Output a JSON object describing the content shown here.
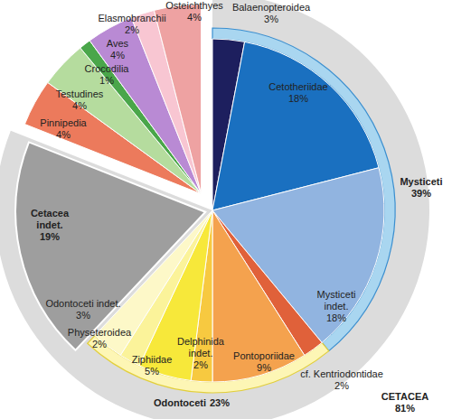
{
  "chart_data": {
    "type": "pie",
    "categories": [
      "Balaenopteroidea",
      "Cetotheriidae",
      "Mysticeti indet.",
      "cf. Kentriodontidae",
      "Pontoporiidae",
      "Delphinida indet.",
      "Ziphiidae",
      "Physeteroidea",
      "Odontoceti indet.",
      "Cetacea indet.",
      "Pinnipedia",
      "Testudines",
      "Crocodilia",
      "Aves",
      "Elasmobranchii",
      "Osteichthyes"
    ],
    "values": [
      3,
      18,
      18,
      2,
      9,
      2,
      5,
      2,
      3,
      19,
      4,
      4,
      1,
      4,
      2,
      4
    ],
    "value_labels": [
      "3%",
      "18%",
      "18%",
      "2%",
      "9%",
      "2%",
      "5%",
      "2%",
      "3%",
      "19%",
      "4%",
      "4%",
      "1%",
      "4%",
      "2%",
      "4%"
    ],
    "colors": [
      "#1d1f5e",
      "#1a70c0",
      "#91b4e0",
      "#e0613a",
      "#f4a24e",
      "#f7c940",
      "#f7e83a",
      "#fbf39a",
      "#fdf8c8",
      "#9e9e9e",
      "#ec7a5c",
      "#b5dc9e",
      "#4aa64a",
      "#b98ad4",
      "#f8c6d2",
      "#eea2a2"
    ],
    "data_labels": true,
    "groups": [
      {
        "name": "CETACEA",
        "value": 81,
        "value_label": "81%",
        "color": "#dcdcdc",
        "members": [
          "Balaenopteroidea",
          "Cetotheriidae",
          "Mysticeti indet.",
          "cf. Kentriodontidae",
          "Pontoporiidae",
          "Delphinida indet.",
          "Ziphiidae",
          "Physeteroidea",
          "Odontoceti indet.",
          "Cetacea indet."
        ]
      },
      {
        "name": "Mysticeti",
        "value": 39,
        "value_label": "39%",
        "color": "#a9d6f0",
        "members": [
          "Balaenopteroidea",
          "Cetotheriidae",
          "Mysticeti indet."
        ]
      },
      {
        "name": "Odontoceti",
        "value": 23,
        "value_label": "23%",
        "color": "#fdf6b5",
        "members": [
          "cf. Kentriodontidae",
          "Pontoporiidae",
          "Delphinida indet.",
          "Ziphiidae",
          "Physeteroidea",
          "Odontoceti indet."
        ]
      }
    ]
  }
}
